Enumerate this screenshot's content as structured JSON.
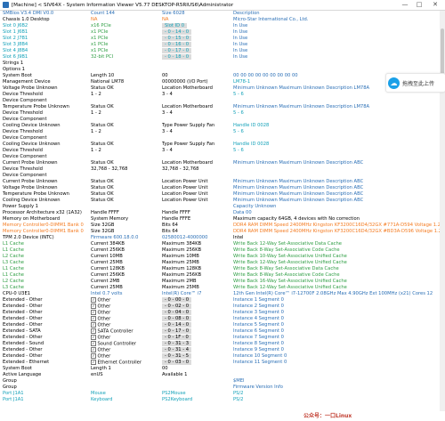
{
  "window": {
    "title": "[Machine] < SIV64X - System Information Viewer V5.77 DESKTOP-R5RIUS6\\Administrator",
    "min": "—",
    "max": "□",
    "close": "✕"
  },
  "float_widget": {
    "label": "拖拽至此上传"
  },
  "watermark": "公众号：一口Linux",
  "rows": [
    {
      "c1": "SMBios V3.4 DMI V0.0",
      "c1c": "blue",
      "c2": "Count 144",
      "c2c": "blue",
      "c3": "Size 6028",
      "c3c": "blue",
      "c4": "Description",
      "c4c": "blue"
    },
    {
      "c1": "Chassis 1.0 Desktop",
      "c1c": "black",
      "c2": "NA",
      "c2c": "orange",
      "c3": "NA",
      "c3c": "orange",
      "c4": "Micro-Star International Co., Ltd.",
      "c4c": "blue"
    },
    {
      "c1": "Slot    0    J6B2",
      "c1c": "teal",
      "c2": "x16 PCIe",
      "c2c": "green",
      "c3": "Slot ID 0",
      "c3c": "teal",
      "c4": "In Use",
      "c4c": "blue",
      "shade": true
    },
    {
      "c1": "Slot    1    J6B1",
      "c1c": "teal",
      "c2": "x1 PCIe",
      "c2c": "green",
      "c3": "- 0 - 14 - 0",
      "c3c": "teal",
      "c4": "In Use",
      "c4c": "blue",
      "shade": true
    },
    {
      "c1": "Slot    2    J7B1",
      "c1c": "teal",
      "c2": "x1 PCIe",
      "c2c": "green",
      "c3": "- 0 - 15 - 0",
      "c3c": "teal",
      "c4": "In Use",
      "c4c": "blue",
      "shade": true
    },
    {
      "c1": "Slot    3    J8B4",
      "c1c": "teal",
      "c2": "x1 PCIe",
      "c2c": "green",
      "c3": "- 0 - 16 - 0",
      "c3c": "teal",
      "c4": "In Use",
      "c4c": "blue",
      "shade": true
    },
    {
      "c1": "Slot    4    J8B4",
      "c1c": "teal",
      "c2": "x1 PCIe",
      "c2c": "green",
      "c3": "- 0 - 17 - 0",
      "c3c": "teal",
      "c4": "In Use",
      "c4c": "blue",
      "shade": true
    },
    {
      "c1": "Slot    6    J9B1",
      "c1c": "teal",
      "c2": "32-bit PCI",
      "c2c": "green",
      "c3": "- 0 - 18 - 0",
      "c3c": "teal",
      "c4": "In Use",
      "c4c": "blue",
      "shade": true
    },
    {
      "c1": "Strings 1",
      "c1c": "black"
    },
    {
      "c1": "Options 1",
      "c1c": "black"
    },
    {
      "c1": "System Boot",
      "c1c": "black",
      "c2": "Length 10",
      "c2c": "black",
      "c3": "00",
      "c3c": "black",
      "c4": "00 00 00 00 00 00 00 00 00",
      "c4c": "blue"
    },
    {
      "c1": "Management Device",
      "c1c": "black",
      "c2": "National LM78",
      "c2c": "black",
      "c3": "00000000 (I/O Port)",
      "c3c": "black",
      "c4": "LM78-1",
      "c4c": "teal"
    },
    {
      "c1": "Voltage Probe  Unknown",
      "c1c": "black",
      "c2": "Status OK",
      "c2c": "black",
      "c3": "Location Motherboard",
      "c3c": "black",
      "c4": "Minimum  Unknown  Maximum  Unknown  Description LM78A",
      "c4c": "blue"
    },
    {
      "c1": "Device Threshold",
      "c1c": "black",
      "c2": "1 - 2",
      "c2c": "black",
      "c3": "3 - 4",
      "c3c": "black",
      "c4": "5 - 6",
      "c4c": "teal"
    },
    {
      "c1": "Device Component",
      "c1c": "black"
    },
    {
      "c1": "Temperature Probe  Unknown",
      "c1c": "black",
      "c2": "Status OK",
      "c2c": "black",
      "c3": "Location Motherboard",
      "c3c": "black",
      "c4": "Minimum  Unknown  Maximum  Unknown  Description LM78A",
      "c4c": "blue"
    },
    {
      "c1": "Device Threshold",
      "c1c": "black",
      "c2": "1 - 2",
      "c2c": "black",
      "c3": "3 - 4",
      "c3c": "black",
      "c4": "5 - 6",
      "c4c": "teal"
    },
    {
      "c1": "Device Component",
      "c1c": "black"
    },
    {
      "c1": "Cooling Device Unknown",
      "c1c": "black",
      "c2": "Status OK",
      "c2c": "black",
      "c3": "Type Power Supply Fan",
      "c3c": "black",
      "c4": "Handle ID 0028",
      "c4c": "teal"
    },
    {
      "c1": "Device Threshold",
      "c1c": "black",
      "c2": "1 - 2",
      "c2c": "black",
      "c3": "3 - 4",
      "c3c": "black",
      "c4": "5 - 6",
      "c4c": "teal"
    },
    {
      "c1": "Device Component",
      "c1c": "black"
    },
    {
      "c1": "Cooling Device Unknown",
      "c1c": "black",
      "c2": "Status OK",
      "c2c": "black",
      "c3": "Type Power Supply Fan",
      "c3c": "black",
      "c4": "Handle ID 0028",
      "c4c": "teal"
    },
    {
      "c1": "Device Threshold",
      "c1c": "black",
      "c2": "1 - 2",
      "c2c": "black",
      "c3": "3 - 4",
      "c3c": "black",
      "c4": "5 - 6",
      "c4c": "teal"
    },
    {
      "c1": "Device Component",
      "c1c": "black"
    },
    {
      "c1": "Current Probe  Unknown",
      "c1c": "black",
      "c2": "Status OK",
      "c2c": "black",
      "c3": "Location Motherboard",
      "c3c": "black",
      "c4": "Minimum  Unknown  Maximum  Unknown  Description ABC",
      "c4c": "blue"
    },
    {
      "c1": "Device Threshold",
      "c1c": "black",
      "c2": "32,768 - 32,768",
      "c2c": "black",
      "c3": "32,768 - 32,768",
      "c3c": "black",
      "c4": "",
      "c4c": "teal"
    },
    {
      "c1": "Device Component",
      "c1c": "black"
    },
    {
      "c1": "Current Probe  Unknown",
      "c1c": "black",
      "c2": "Status OK",
      "c2c": "black",
      "c3": "Location Power Unit",
      "c3c": "black",
      "c4": "Minimum  Unknown  Maximum  Unknown  Description ABC",
      "c4c": "blue"
    },
    {
      "c1": "Voltage Probe  Unknown",
      "c1c": "black",
      "c2": "Status OK",
      "c2c": "black",
      "c3": "Location Power Unit",
      "c3c": "black",
      "c4": "Minimum  Unknown  Maximum  Unknown  Description ABC",
      "c4c": "blue"
    },
    {
      "c1": "Temperature Probe  Unknown",
      "c1c": "black",
      "c2": "Status OK",
      "c2c": "black",
      "c3": "Location Power Unit",
      "c3c": "black",
      "c4": "Minimum  Unknown  Maximum  Unknown  Description ABC",
      "c4c": "blue"
    },
    {
      "c1": "Cooling Device Unknown",
      "c1c": "black",
      "c2": "Status OK",
      "c2c": "black",
      "c3": "Location Power Unit",
      "c3c": "black",
      "c4": "Minimum  Unknown  Maximum  Unknown  Description ABC",
      "c4c": "blue"
    },
    {
      "c1": "Power Supply 1",
      "c1c": "black",
      "c4": "Capacity Unknown",
      "c4c": "blue"
    },
    {
      "c1": "Processor Architecture x32 (1A32)",
      "c1c": "black",
      "c2": "Handle FFFF",
      "c2c": "black",
      "c3": "Handle FFFF",
      "c3c": "black",
      "c4": "Data 00",
      "c4c": "blue"
    },
    {
      "c1": "Memory on Motherboard",
      "c1c": "black",
      "c2": "System Memory",
      "c2c": "black",
      "c3": "Handle FFFE",
      "c3c": "black",
      "c4": "Maximum capacity 64GB, 4 devices with No correction",
      "c4c": "black"
    },
    {
      "c1": "Memory Controller0-DIMM1 Bank 0",
      "c1c": "orange",
      "c2": "Size 32GB",
      "c2c": "black",
      "c3": "Bits 64",
      "c3c": "black",
      "c4": "DDR4 RAM DIMM  Speed 2400MHz  Kingston  KF3200C16D4/32GX  #771A-D594  Voltage 1.200 V",
      "c4c": "orange"
    },
    {
      "c1": "Memory Controller0-DIMM1 Bank 0",
      "c1c": "orange",
      "c2": "Size 32GB",
      "c2c": "black",
      "c3": "Bits 64",
      "c3c": "black",
      "c4": "DDR4 RAM DIMM  Speed 2400MHz  Kingston  KF3200C16D4/32GX  #BD3A-D596  Voltage 1.200 V",
      "c4c": "orange"
    },
    {
      "c1": "TPM 2.0 Device (INTC)",
      "c1c": "black",
      "c2": "Firmware 600.18.0.0",
      "c2c": "blue",
      "c3": "02580012-4000000",
      "c3c": "blue",
      "c4": "Intel",
      "c4c": "black"
    },
    {
      "c1": "L1 Cache",
      "c1c": "green",
      "c2": "Current 384KB",
      "c2c": "black",
      "c3": "Maximum 384KB",
      "c3c": "black",
      "c4": "Write Back  12-Way Set-Associative Data Cache",
      "c4c": "green"
    },
    {
      "c1": "L1 Cache",
      "c1c": "green",
      "c2": "Current 256KB",
      "c2c": "black",
      "c3": "Maximum 256KB",
      "c3c": "black",
      "c4": "Write Back  8-Way Set-Associative Code Cache",
      "c4c": "green"
    },
    {
      "c1": "L2 Cache",
      "c1c": "green",
      "c2": "Current 10MB",
      "c2c": "black",
      "c3": "Maximum 10MB",
      "c3c": "black",
      "c4": "Write Back  10-Way Set-Associative Unified Cache",
      "c4c": "green"
    },
    {
      "c1": "L3 Cache",
      "c1c": "green",
      "c2": "Current 25MB",
      "c2c": "black",
      "c3": "Maximum 25MB",
      "c3c": "black",
      "c4": "Write Back  12-Way Set-Associative Unified Cache",
      "c4c": "green"
    },
    {
      "c1": "L1 Cache",
      "c1c": "green",
      "c2": "Current 128KB",
      "c2c": "black",
      "c3": "Maximum 128KB",
      "c3c": "black",
      "c4": "Write Back  8-Way Set-Associative Data Cache",
      "c4c": "green"
    },
    {
      "c1": "L1 Cache",
      "c1c": "green",
      "c2": "Current 256KB",
      "c2c": "black",
      "c3": "Maximum 256KB",
      "c3c": "black",
      "c4": "Write Back  8-Way Set-Associative Code Cache",
      "c4c": "green"
    },
    {
      "c1": "L2 Cache",
      "c1c": "green",
      "c2": "Current 2MB",
      "c2c": "black",
      "c3": "Maximum 2MB",
      "c3c": "black",
      "c4": "Write Back  16-Way Set-Associative Unified Cache",
      "c4c": "green"
    },
    {
      "c1": "L3 Cache",
      "c1c": "green",
      "c2": "Current 25MB",
      "c2c": "black",
      "c3": "Maximum 25MB",
      "c3c": "black",
      "c4": "Write Back  12-Way Set-Associative Unified Cache",
      "c4c": "green"
    },
    {
      "c1": "CPU-0 U3E1",
      "c1c": "black",
      "c2": "Intel 0.7 volts",
      "c2c": "blue",
      "c3": "Intel(R) Core™ i7",
      "c3c": "blue",
      "c4": "12th Gen Intel(R) Core™ i7-12700F  2.08GHz  Max 4.90GHz  Ext 100MHz (x21)  Cores 12",
      "c4c": "blue"
    },
    {
      "c1": "Extended - Other",
      "c1c": "black",
      "c2": "Other",
      "c2c": "black",
      "chk": true,
      "c3": "- 0 - 00 - 0",
      "c3c": "black",
      "c4": "Instance 1  Segment 0",
      "c4c": "blue",
      "shade": true
    },
    {
      "c1": "Extended - Other",
      "c1c": "black",
      "c2": "Other",
      "c2c": "black",
      "chk": true,
      "c3": "- 0 - 02 - 0",
      "c3c": "black",
      "c4": "Instance 2  Segment 0",
      "c4c": "blue",
      "shade": true
    },
    {
      "c1": "Extended - Other",
      "c1c": "black",
      "c2": "Other",
      "c2c": "black",
      "chk": true,
      "c3": "- 0 - 04 - 0",
      "c3c": "black",
      "c4": "Instance 3  Segment 0",
      "c4c": "blue",
      "shade": true
    },
    {
      "c1": "Extended - Other",
      "c1c": "black",
      "c2": "Other",
      "c2c": "black",
      "chk": true,
      "c3": "- 0 - 08 - 0",
      "c3c": "black",
      "c4": "Instance 4  Segment 0",
      "c4c": "blue",
      "shade": true
    },
    {
      "c1": "Extended - Other",
      "c1c": "black",
      "c2": "Other",
      "c2c": "black",
      "chk": true,
      "c3": "- 0 - 14 - 0",
      "c3c": "black",
      "c4": "Instance 5  Segment 0",
      "c4c": "blue",
      "shade": true
    },
    {
      "c1": "Extended - SATA",
      "c1c": "black",
      "c2": "SATA Controller",
      "c2c": "black",
      "chk": true,
      "c3": "- 0 - 17 - 0",
      "c3c": "black",
      "c4": "Instance 6  Segment 0",
      "c4c": "blue",
      "shade": true
    },
    {
      "c1": "Extended - Other",
      "c1c": "black",
      "c2": "Other",
      "c2c": "black",
      "chk": true,
      "c3": "- 0 - 1F - 0",
      "c3c": "black",
      "c4": "Instance 7  Segment 0",
      "c4c": "blue",
      "shade": true
    },
    {
      "c1": "Extended - Sound",
      "c1c": "black",
      "c2": "Sound Controller",
      "c2c": "black",
      "chk": true,
      "c3": "- 0 - 31 - 3",
      "c3c": "black",
      "c4": "Instance 8  Segment 0",
      "c4c": "blue",
      "shade": true
    },
    {
      "c1": "Extended - Other",
      "c1c": "black",
      "c2": "Other",
      "c2c": "black",
      "chk": true,
      "c3": "- 0 - 31 - 4",
      "c3c": "black",
      "c4": "Instance 9  Segment 0",
      "c4c": "blue",
      "shade": true
    },
    {
      "c1": "Extended - Other",
      "c1c": "black",
      "c2": "Other",
      "c2c": "black",
      "chk": true,
      "c3": "- 0 - 31 - 5",
      "c3c": "black",
      "c4": "Instance 10  Segment 0",
      "c4c": "blue",
      "shade": true
    },
    {
      "c1": "Extended - Ethernet",
      "c1c": "black",
      "c2": "Ethernet Controller",
      "c2c": "black",
      "chk": true,
      "c3": "- 0 - 03 - 0",
      "c3c": "black",
      "c4": "Instance 11  Segment 0",
      "c4c": "blue",
      "shade": true
    },
    {
      "c1": "System Boot",
      "c1c": "black",
      "c2": "Length 1",
      "c2c": "black",
      "c3": "00",
      "c3c": "black",
      "c4": "",
      "c4c": "blue"
    },
    {
      "c1": "Active Language",
      "c1c": "black",
      "c2": "enUS",
      "c2c": "black",
      "c3": "Available 1",
      "c3c": "black",
      "c4": "",
      "c4c": "blue"
    },
    {
      "c1": "Group",
      "c1c": "black",
      "c4": "$MEI",
      "c4c": "blue"
    },
    {
      "c1": "Group",
      "c1c": "black",
      "c4": "Firmware Version Info",
      "c4c": "blue"
    },
    {
      "c1": "Port  J1A1",
      "c1c": "teal",
      "c2": "Mouse",
      "c2c": "teal",
      "c3": "PS2Mouse",
      "c3c": "teal",
      "c4": "PS/2",
      "c4c": "teal"
    },
    {
      "c1": "Port  J1A1",
      "c1c": "teal",
      "c2": "Keyboard",
      "c2c": "teal",
      "c3": "PS2Keyboard",
      "c3c": "teal",
      "c4": "PS/2",
      "c4c": "teal"
    }
  ]
}
